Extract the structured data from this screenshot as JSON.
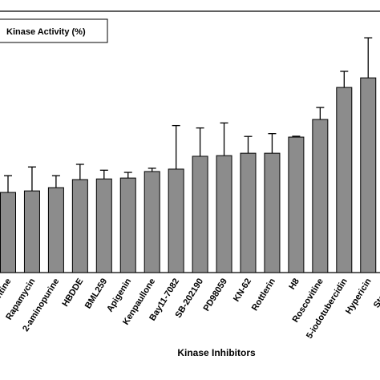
{
  "chart_data": {
    "type": "bar",
    "legend": "Kinase Activity (%)",
    "x_label": "Kinase Inhibitors",
    "categories": [
      "ntine",
      "Rapamycin",
      "2-aminopurine",
      "HBDDE",
      "BML259",
      "Apigenin",
      "Kenpaullone",
      "Bay11-7082",
      "SB-202190",
      "PD98059",
      "KN-62",
      "Rottlerin",
      "H8",
      "Roscovitine",
      "5-iodotubercidin",
      "Hypericin",
      "Stauros"
    ],
    "values": [
      36.8,
      37.5,
      39,
      42.7,
      43,
      43.4,
      46.4,
      47.5,
      53.4,
      53.7,
      54.8,
      54.8,
      62.2,
      70.3,
      85,
      89.4,
      null
    ],
    "errors": [
      7.7,
      11,
      5.5,
      7,
      4,
      2.6,
      1.5,
      20,
      13,
      15,
      7.7,
      9,
      0.4,
      5.5,
      7.4,
      18.4,
      null
    ],
    "color": "#8c8c8c",
    "ylim": [
      0,
      120
    ]
  }
}
